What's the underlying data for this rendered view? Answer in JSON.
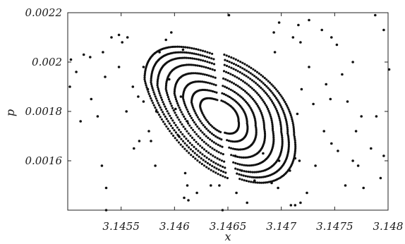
{
  "chart_data": {
    "type": "scatter",
    "title": "",
    "xlabel": "x",
    "ylabel": "p",
    "xlim": [
      3.145,
      3.148
    ],
    "ylim": [
      0.0014,
      0.0022
    ],
    "grid": false,
    "legend": "none",
    "point_color": "#111111",
    "xticks": [
      {
        "value": 3.1455,
        "label": "3.1455"
      },
      {
        "value": 3.146,
        "label": "3.146"
      },
      {
        "value": 3.1465,
        "label": "3.1465"
      },
      {
        "value": 3.147,
        "label": "3.147"
      },
      {
        "value": 3.1475,
        "label": "3.1475"
      },
      {
        "value": 3.148,
        "label": "3.148"
      }
    ],
    "yticks": [
      {
        "value": 0.0016,
        "label": "0.0016"
      },
      {
        "value": 0.0018,
        "label": "0.0018"
      },
      {
        "value": 0.002,
        "label": "0.002"
      },
      {
        "value": 0.0022,
        "label": "0.0022"
      }
    ],
    "series": [
      {
        "kind": "invariant_curves",
        "center": {
          "x": 3.14642,
          "p": 0.00178
        },
        "curves": [
          {
            "rx": 0.00018,
            "rp": 6.5e-05,
            "dots": 70
          },
          {
            "rx": 0.00026,
            "rp": 9.5e-05,
            "dots": 90
          },
          {
            "rx": 0.00034,
            "rp": 0.000125,
            "dots": 110
          },
          {
            "rx": 0.00042,
            "rp": 0.000155,
            "dots": 130
          },
          {
            "rx": 0.0005,
            "rp": 0.000185,
            "dots": 150
          },
          {
            "rx": 0.00058,
            "rp": 0.00021,
            "dots": 170
          },
          {
            "rx": 0.00064,
            "rp": 0.00023,
            "dots": 190
          },
          {
            "rx": 0.0007,
            "rp": 0.00025,
            "dots": 200
          }
        ]
      },
      {
        "kind": "chaotic_sea",
        "points": [
          [
            3.14503,
            0.00201
          ],
          [
            3.14508,
            0.00196
          ],
          [
            3.14502,
            0.0019
          ],
          [
            3.14515,
            0.00203
          ],
          [
            3.14512,
            0.00176
          ],
          [
            3.14521,
            0.00202
          ],
          [
            3.14533,
            0.00204
          ],
          [
            3.14541,
            0.0021
          ],
          [
            3.14548,
            0.00211
          ],
          [
            3.14551,
            0.00208
          ],
          [
            3.14556,
            0.0021
          ],
          [
            3.14535,
            0.00194
          ],
          [
            3.14528,
            0.00178
          ],
          [
            3.14532,
            0.00158
          ],
          [
            3.14536,
            0.00149
          ],
          [
            3.14536,
            0.0014
          ],
          [
            3.14522,
            0.00185
          ],
          [
            3.14548,
            0.00198
          ],
          [
            3.14561,
            0.0019
          ],
          [
            3.14566,
            0.00186
          ],
          [
            3.14571,
            0.00184
          ],
          [
            3.14575,
            0.00189
          ],
          [
            3.14583,
            0.0018
          ],
          [
            3.14576,
            0.00172
          ],
          [
            3.14567,
            0.00168
          ],
          [
            3.14562,
            0.00165
          ],
          [
            3.14578,
            0.00168
          ],
          [
            3.14582,
            0.00158
          ],
          [
            3.14592,
            0.00209
          ],
          [
            3.14597,
            0.00212
          ],
          [
            3.14595,
            0.00193
          ],
          [
            3.14608,
            0.00205
          ],
          [
            3.14606,
            0.00186
          ],
          [
            3.14601,
            0.00181
          ],
          [
            3.14604,
            0.0017
          ],
          [
            3.14612,
            0.00176
          ],
          [
            3.14571,
            0.00198
          ],
          [
            3.14555,
            0.0018
          ],
          [
            3.14586,
            0.00204
          ],
          [
            3.14609,
            0.00145
          ],
          [
            3.14612,
            0.0015
          ],
          [
            3.14621,
            0.00147
          ],
          [
            3.14634,
            0.0015
          ],
          [
            3.14613,
            0.00144
          ],
          [
            3.1461,
            0.00155
          ],
          [
            3.14642,
            0.0015
          ],
          [
            3.14657,
            0.00162
          ],
          [
            3.14663,
            0.00156
          ],
          [
            3.14658,
            0.00147
          ],
          [
            3.14668,
            0.00143
          ],
          [
            3.14675,
            0.00152
          ],
          [
            3.14683,
            0.00163
          ],
          [
            3.14691,
            0.00151
          ],
          [
            3.14697,
            0.00149
          ],
          [
            3.14709,
            0.00142
          ],
          [
            3.14713,
            0.00142
          ],
          [
            3.14718,
            0.00143
          ],
          [
            3.14724,
            0.00147
          ],
          [
            3.14713,
            0.00161
          ],
          [
            3.14717,
            0.0016
          ],
          [
            3.14708,
            0.00156
          ],
          [
            3.14732,
            0.00158
          ],
          [
            3.1474,
            0.00172
          ],
          [
            3.14715,
            0.00179
          ],
          [
            3.14719,
            0.00189
          ],
          [
            3.1473,
            0.00183
          ],
          [
            3.14742,
            0.00191
          ],
          [
            3.14726,
            0.00198
          ],
          [
            3.14718,
            0.00208
          ],
          [
            3.14698,
            0.00216
          ],
          [
            3.14711,
            0.0021
          ],
          [
            3.14716,
            0.00215
          ],
          [
            3.14726,
            0.00217
          ],
          [
            3.14694,
            0.00204
          ],
          [
            3.14651,
            0.00219
          ],
          [
            3.14693,
            0.00212
          ],
          [
            3.14738,
            0.00213
          ],
          [
            3.14747,
            0.0021
          ],
          [
            3.14752,
            0.00207
          ],
          [
            3.14767,
            0.002
          ],
          [
            3.14757,
            0.00195
          ],
          [
            3.14762,
            0.00184
          ],
          [
            3.14775,
            0.00178
          ],
          [
            3.1477,
            0.00172
          ],
          [
            3.14747,
            0.00167
          ],
          [
            3.14753,
            0.00164
          ],
          [
            3.14767,
            0.0016
          ],
          [
            3.14772,
            0.00158
          ],
          [
            3.14777,
            0.00149
          ],
          [
            3.14793,
            0.00153
          ],
          [
            3.14784,
            0.00165
          ],
          [
            3.14789,
            0.00178
          ],
          [
            3.14796,
            0.00162
          ],
          [
            3.14801,
            0.00197
          ],
          [
            3.14788,
            0.00219
          ],
          [
            3.14796,
            0.00213
          ],
          [
            3.14746,
            0.00185
          ],
          [
            3.1476,
            0.0015
          ],
          [
            3.14698,
            0.0016
          ],
          [
            3.14645,
            0.0014
          ]
        ]
      }
    ]
  }
}
